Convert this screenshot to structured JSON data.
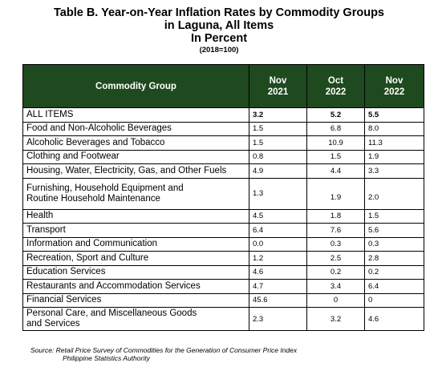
{
  "title": {
    "line1": "Table B. Year-on-Year Inflation Rates by Commodity Groups",
    "line2": "in Laguna, All Items",
    "line3": "In Percent",
    "line4": "(2018=100)"
  },
  "table": {
    "header": {
      "group": "Commodity Group",
      "col1_line1": "Nov",
      "col1_line2": "2021",
      "col2_line1": "Oct",
      "col2_line2": "2022",
      "col3_line1": "Nov",
      "col3_line2": "2022"
    },
    "rows": [
      {
        "label": "ALL ITEMS",
        "v1": "3.2",
        "v2": "5.2",
        "v3": "5.5"
      },
      {
        "label": "Food and Non-Alcoholic Beverages",
        "v1": "1.5",
        "v2": "6.8",
        "v3": "8.0"
      },
      {
        "label": "Alcoholic Beverages and Tobacco",
        "v1": "1.5",
        "v2": "10.9",
        "v3": "11.3"
      },
      {
        "label": "Clothing and Footwear",
        "v1": "0.8",
        "v2": "1.5",
        "v3": "1.9"
      },
      {
        "label": "Housing, Water, Electricity, Gas, and Other Fuels",
        "v1": "4.9",
        "v2": "4.4",
        "v3": "3.3"
      },
      {
        "label_line1": "Furnishing, Household Equipment and",
        "label_line2": "Routine Household Maintenance",
        "v1": "1.3",
        "v2": "1.9",
        "v3": "2.0"
      },
      {
        "label": "Health",
        "v1": "4.5",
        "v2": "1.8",
        "v3": "1.5"
      },
      {
        "label": "Transport",
        "v1": "6.4",
        "v2": "7.6",
        "v3": "5.6"
      },
      {
        "label": "Information and Communication",
        "v1": "0.0",
        "v2": "0.3",
        "v3": "0.3"
      },
      {
        "label": "Recreation, Sport and Culture",
        "v1": "1.2",
        "v2": "2.5",
        "v3": "2.8"
      },
      {
        "label": "Education Services",
        "v1": "4.6",
        "v2": "0.2",
        "v3": "0.2"
      },
      {
        "label": "Restaurants and Accommodation Services",
        "v1": "4.7",
        "v2": "3.4",
        "v3": "6.4"
      },
      {
        "label": "Financial Services",
        "v1": "45.6",
        "v2": "0",
        "v3": "0"
      },
      {
        "label_line1": "Personal Care, and Miscellaneous Goods",
        "label_line2": "and Services",
        "v1": "2.3",
        "v2": "3.2",
        "v3": "4.6"
      }
    ]
  },
  "source": {
    "line1": "Source: Retail Price Survey of Commodities for the Generation of Consumer Price Index",
    "line2": "Philippine Statistics Authority"
  },
  "colors": {
    "header_bg": "#1f4a1f",
    "header_text": "#ffffff"
  }
}
